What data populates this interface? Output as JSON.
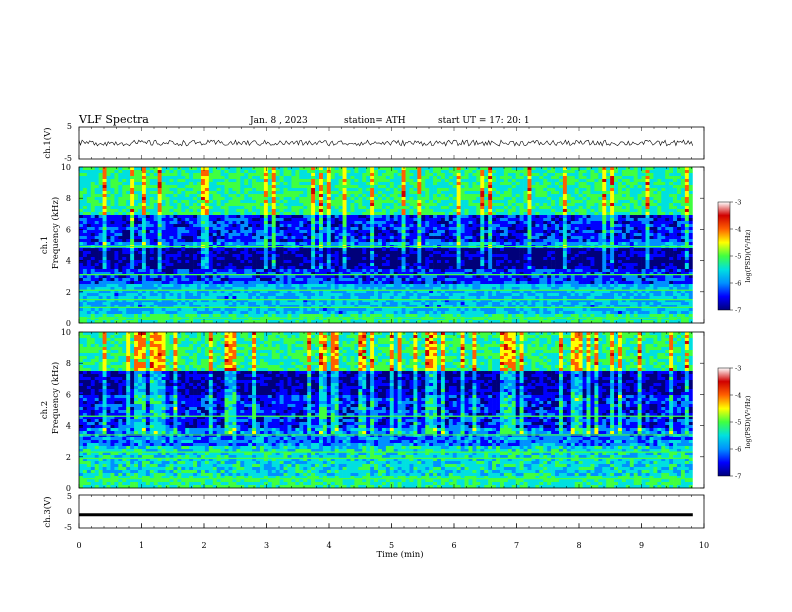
{
  "header": {
    "title": "VLF  Spectra",
    "date": "Jan.  8  , 2023",
    "station": "station= ATH",
    "start_ut": "start  UT  =    17: 20: 1"
  },
  "colors": {
    "spectrum_scale": [
      "#00007a",
      "#0000ff",
      "#0090ff",
      "#00e0e0",
      "#40ff40",
      "#ffff00",
      "#ff6000",
      "#d00000",
      "#ffffff"
    ],
    "trace": "#000000"
  },
  "chart_data": [
    {
      "type": "line",
      "name": "ch1-waveform",
      "ylabel": "ch.1(V)",
      "ylim": [
        -5,
        5
      ],
      "yticks": [
        "5",
        "-5"
      ],
      "xlim": [
        0,
        10
      ],
      "trace_level_v": 0,
      "trace_noise": "small fluctuations around 0 V across the record"
    },
    {
      "type": "heatmap",
      "name": "ch1-spectrogram",
      "ylabel": "Frequency  (kHz)",
      "channel_label": "ch.1",
      "ylim": [
        0,
        10
      ],
      "yticks": [
        "0",
        "2",
        "4",
        "6",
        "8",
        "10"
      ],
      "xlim": [
        0,
        9.82
      ],
      "colorbar": {
        "label": "log(PSD)(V²/Hz)",
        "range": [
          -7,
          -3
        ],
        "ticks": [
          "-3",
          "-4",
          "-5",
          "-6",
          "-7"
        ]
      },
      "bands_khz": [
        {
          "from": 0,
          "to": 0.6,
          "level": -5.0
        },
        {
          "from": 0.6,
          "to": 2.5,
          "level": -5.6
        },
        {
          "from": 2.5,
          "to": 3.5,
          "level": -6.3
        },
        {
          "from": 3.5,
          "to": 4.8,
          "level": -6.9
        },
        {
          "from": 4.8,
          "to": 5.2,
          "level": -5.8
        },
        {
          "from": 5.2,
          "to": 7.0,
          "level": -6.4
        },
        {
          "from": 7.0,
          "to": 10,
          "level": -5.0
        }
      ],
      "tones_khz": [
        0.3,
        1.0,
        1.5,
        2.1,
        3.1,
        4.9
      ]
    },
    {
      "type": "heatmap",
      "name": "ch2-spectrogram",
      "ylabel": "Frequency  (kHz)",
      "channel_label": "ch.2",
      "ylim": [
        0,
        10
      ],
      "yticks": [
        "0",
        "2",
        "4",
        "6",
        "8",
        "10"
      ],
      "xlim": [
        0,
        9.82
      ],
      "colorbar": {
        "label": "log(PSD)(V²/Hz)",
        "range": [
          -7,
          -3
        ],
        "ticks": [
          "-3",
          "-4",
          "-5",
          "-6",
          "-7"
        ]
      },
      "bands_khz": [
        {
          "from": 0,
          "to": 0.8,
          "level": -5.0
        },
        {
          "from": 0.8,
          "to": 2.6,
          "level": -5.3
        },
        {
          "from": 2.6,
          "to": 3.8,
          "level": -5.9
        },
        {
          "from": 3.8,
          "to": 6.0,
          "level": -6.4
        },
        {
          "from": 6.0,
          "to": 7.5,
          "level": -6.8
        },
        {
          "from": 7.5,
          "to": 10,
          "level": -5.0
        }
      ],
      "tones_khz": [
        0.6,
        1.9,
        2.3,
        3.4,
        4.6
      ]
    },
    {
      "type": "line",
      "name": "ch3-waveform",
      "ylabel": "ch.3(V)",
      "ylim": [
        -5,
        5
      ],
      "yticks": [
        "5",
        "0",
        "-5"
      ],
      "xlim": [
        0,
        10
      ],
      "trace_level_v": -1,
      "trace_noise": "thick flat trace"
    }
  ],
  "x_axis": {
    "label": "Time  (min)",
    "range": [
      0,
      10
    ],
    "ticks": [
      "0",
      "1",
      "2",
      "3",
      "4",
      "5",
      "6",
      "7",
      "8",
      "9",
      "10"
    ]
  }
}
